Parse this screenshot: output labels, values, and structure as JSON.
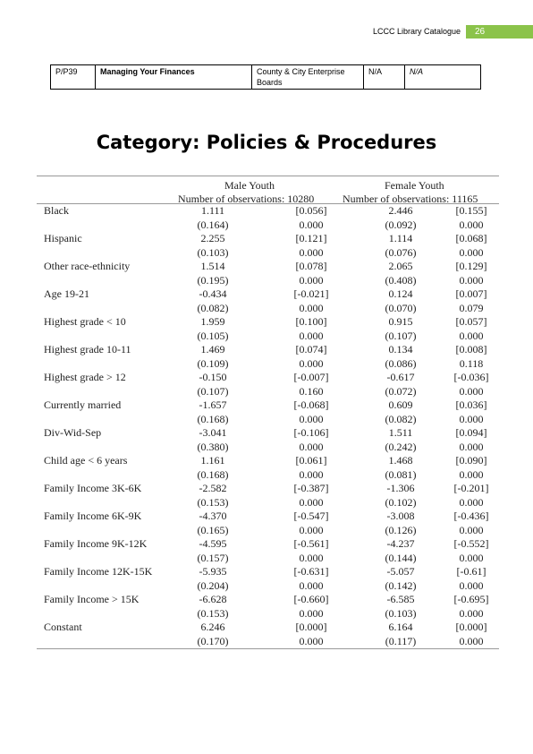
{
  "header": {
    "title": "LCCC Library Catalogue",
    "page_number": "26",
    "accent_color": "#8bc34a"
  },
  "catalog_row": {
    "code": "P/P39",
    "title": "Managing Your Finances",
    "publisher": "County & City Enterprise Boards",
    "format": "N/A",
    "status": "N/A"
  },
  "category_heading": "Category:  Policies & Procedures",
  "regression_table": {
    "groups": [
      {
        "name": "Male Youth",
        "observations": "Number of observations: 10280"
      },
      {
        "name": "Female Youth",
        "observations": "Number of observations: 11165"
      }
    ],
    "rows": [
      {
        "label": "Black",
        "m_coef": "1.111",
        "m_me": "[0.056]",
        "m_se": "(0.164)",
        "m_p": "0.000",
        "f_coef": "2.446",
        "f_me": "[0.155]",
        "f_se": "(0.092)",
        "f_p": "0.000"
      },
      {
        "label": "Hispanic",
        "m_coef": "2.255",
        "m_me": "[0.121]",
        "m_se": "(0.103)",
        "m_p": "0.000",
        "f_coef": "1.114",
        "f_me": "[0.068]",
        "f_se": "(0.076)",
        "f_p": "0.000"
      },
      {
        "label": "Other race-ethnicity",
        "m_coef": "1.514",
        "m_me": "[0.078]",
        "m_se": "(0.195)",
        "m_p": "0.000",
        "f_coef": "2.065",
        "f_me": "[0.129]",
        "f_se": "(0.408)",
        "f_p": "0.000"
      },
      {
        "label": "Age 19-21",
        "m_coef": "-0.434",
        "m_me": "[-0.021]",
        "m_se": "(0.082)",
        "m_p": "0.000",
        "f_coef": "0.124",
        "f_me": "[0.007]",
        "f_se": "(0.070)",
        "f_p": "0.079"
      },
      {
        "label": "Highest grade < 10",
        "m_coef": "1.959",
        "m_me": "[0.100]",
        "m_se": "(0.105)",
        "m_p": "0.000",
        "f_coef": "0.915",
        "f_me": "[0.057]",
        "f_se": "(0.107)",
        "f_p": "0.000"
      },
      {
        "label": "Highest grade 10-11",
        "m_coef": "1.469",
        "m_me": "[0.074]",
        "m_se": "(0.109)",
        "m_p": "0.000",
        "f_coef": "0.134",
        "f_me": "[0.008]",
        "f_se": "(0.086)",
        "f_p": "0.118"
      },
      {
        "label": "Highest grade > 12",
        "m_coef": "-0.150",
        "m_me": "[-0.007]",
        "m_se": "(0.107)",
        "m_p": "0.160",
        "f_coef": "-0.617",
        "f_me": "[-0.036]",
        "f_se": "(0.072)",
        "f_p": "0.000"
      },
      {
        "label": "Currently married",
        "m_coef": "-1.657",
        "m_me": "[-0.068]",
        "m_se": "(0.168)",
        "m_p": "0.000",
        "f_coef": "0.609",
        "f_me": "[0.036]",
        "f_se": "(0.082)",
        "f_p": "0.000"
      },
      {
        "label": "Div-Wid-Sep",
        "m_coef": "-3.041",
        "m_me": "[-0.106]",
        "m_se": "(0.380)",
        "m_p": "0.000",
        "f_coef": "1.511",
        "f_me": "[0.094]",
        "f_se": "(0.242)",
        "f_p": "0.000"
      },
      {
        "label": "Child age < 6 years",
        "m_coef": "1.161",
        "m_me": "[0.061]",
        "m_se": "(0.168)",
        "m_p": "0.000",
        "f_coef": "1.468",
        "f_me": "[0.090]",
        "f_se": "(0.081)",
        "f_p": "0.000"
      },
      {
        "label": "Family Income 3K-6K",
        "m_coef": "-2.582",
        "m_me": "[-0.387]",
        "m_se": "(0.153)",
        "m_p": "0.000",
        "f_coef": "-1.306",
        "f_me": "[-0.201]",
        "f_se": "(0.102)",
        "f_p": "0.000"
      },
      {
        "label": "Family Income 6K-9K",
        "m_coef": "-4.370",
        "m_me": "[-0.547]",
        "m_se": "(0.165)",
        "m_p": "0.000",
        "f_coef": "-3.008",
        "f_me": "[-0.436]",
        "f_se": "(0.126)",
        "f_p": "0.000"
      },
      {
        "label": "Family Income 9K-12K",
        "m_coef": "-4.595",
        "m_me": "[-0.561]",
        "m_se": "(0.157)",
        "m_p": "0.000",
        "f_coef": "-4.237",
        "f_me": "[-0.552]",
        "f_se": "(0.144)",
        "f_p": "0.000"
      },
      {
        "label": "Family Income 12K-15K",
        "m_coef": "-5.935",
        "m_me": "[-0.631]",
        "m_se": "(0.204)",
        "m_p": "0.000",
        "f_coef": "-5.057",
        "f_me": "[-0.61]",
        "f_se": "(0.142)",
        "f_p": "0.000"
      },
      {
        "label": "Family Income > 15K",
        "m_coef": "-6.628",
        "m_me": "[-0.660]",
        "m_se": "(0.153)",
        "m_p": "0.000",
        "f_coef": "-6.585",
        "f_me": "[-0.695]",
        "f_se": "(0.103)",
        "f_p": "0.000"
      },
      {
        "label": "Constant",
        "m_coef": "6.246",
        "m_me": "[0.000]",
        "m_se": "(0.170)",
        "m_p": "0.000",
        "f_coef": "6.164",
        "f_me": "[0.000]",
        "f_se": "(0.117)",
        "f_p": "0.000"
      }
    ]
  }
}
